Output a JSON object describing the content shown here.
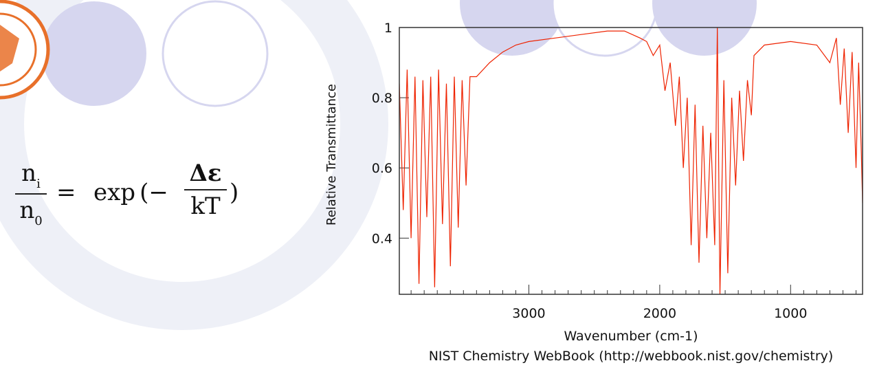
{
  "slide": {
    "formula": {
      "ratio_numerator": "n",
      "ratio_numerator_sub": "i",
      "ratio_denominator": "n",
      "ratio_denominator_sub": "0",
      "equals": "=",
      "function": "exp",
      "open_paren": "(",
      "minus": "−",
      "exponent_numerator": "Δε",
      "exponent_denominator": "kT",
      "close_paren": ")"
    },
    "logo_color": "#e8702a",
    "decor_color": "#d6d6ef"
  },
  "chart_data": {
    "type": "line",
    "title": "",
    "xlabel": "Wavenumber (cm-1)",
    "ylabel": "Relative Transmittance",
    "credit": "NIST Chemistry WebBook (http://webbook.nist.gov/chemistry)",
    "xlim": [
      3990,
      450
    ],
    "ylim": [
      0.24,
      1.0
    ],
    "x_ticks": [
      3000,
      2000,
      1000
    ],
    "x_tick_labels": [
      "3000",
      "2000",
      "1000"
    ],
    "y_ticks": [
      0.4,
      0.6,
      0.8,
      1.0
    ],
    "y_tick_labels": [
      "0.4",
      "0.6",
      "0.8",
      "1"
    ],
    "line_color": "#ee2200",
    "series": [
      {
        "name": "Relative Transmittance",
        "x": [
          3990,
          3960,
          3930,
          3900,
          3870,
          3840,
          3810,
          3780,
          3750,
          3720,
          3690,
          3660,
          3630,
          3600,
          3570,
          3540,
          3510,
          3480,
          3450,
          3400,
          3300,
          3200,
          3100,
          3000,
          2800,
          2600,
          2400,
          2270,
          2150,
          2100,
          2050,
          2000,
          1960,
          1920,
          1880,
          1850,
          1820,
          1790,
          1760,
          1730,
          1700,
          1670,
          1640,
          1610,
          1580,
          1560,
          1540,
          1510,
          1480,
          1450,
          1420,
          1390,
          1360,
          1330,
          1300,
          1280,
          1200,
          1000,
          800,
          700,
          650,
          620,
          590,
          560,
          530,
          500,
          480,
          460,
          450
        ],
        "y": [
          0.84,
          0.48,
          0.88,
          0.4,
          0.86,
          0.27,
          0.85,
          0.46,
          0.86,
          0.26,
          0.88,
          0.44,
          0.84,
          0.32,
          0.86,
          0.43,
          0.85,
          0.55,
          0.86,
          0.86,
          0.9,
          0.93,
          0.95,
          0.96,
          0.97,
          0.98,
          0.99,
          0.99,
          0.97,
          0.96,
          0.92,
          0.95,
          0.82,
          0.9,
          0.72,
          0.86,
          0.6,
          0.8,
          0.38,
          0.78,
          0.33,
          0.72,
          0.4,
          0.7,
          0.38,
          1.0,
          0.24,
          0.85,
          0.3,
          0.8,
          0.55,
          0.82,
          0.62,
          0.85,
          0.75,
          0.92,
          0.95,
          0.96,
          0.95,
          0.9,
          0.97,
          0.78,
          0.94,
          0.7,
          0.93,
          0.6,
          0.9,
          0.65,
          0.5
        ]
      }
    ]
  }
}
